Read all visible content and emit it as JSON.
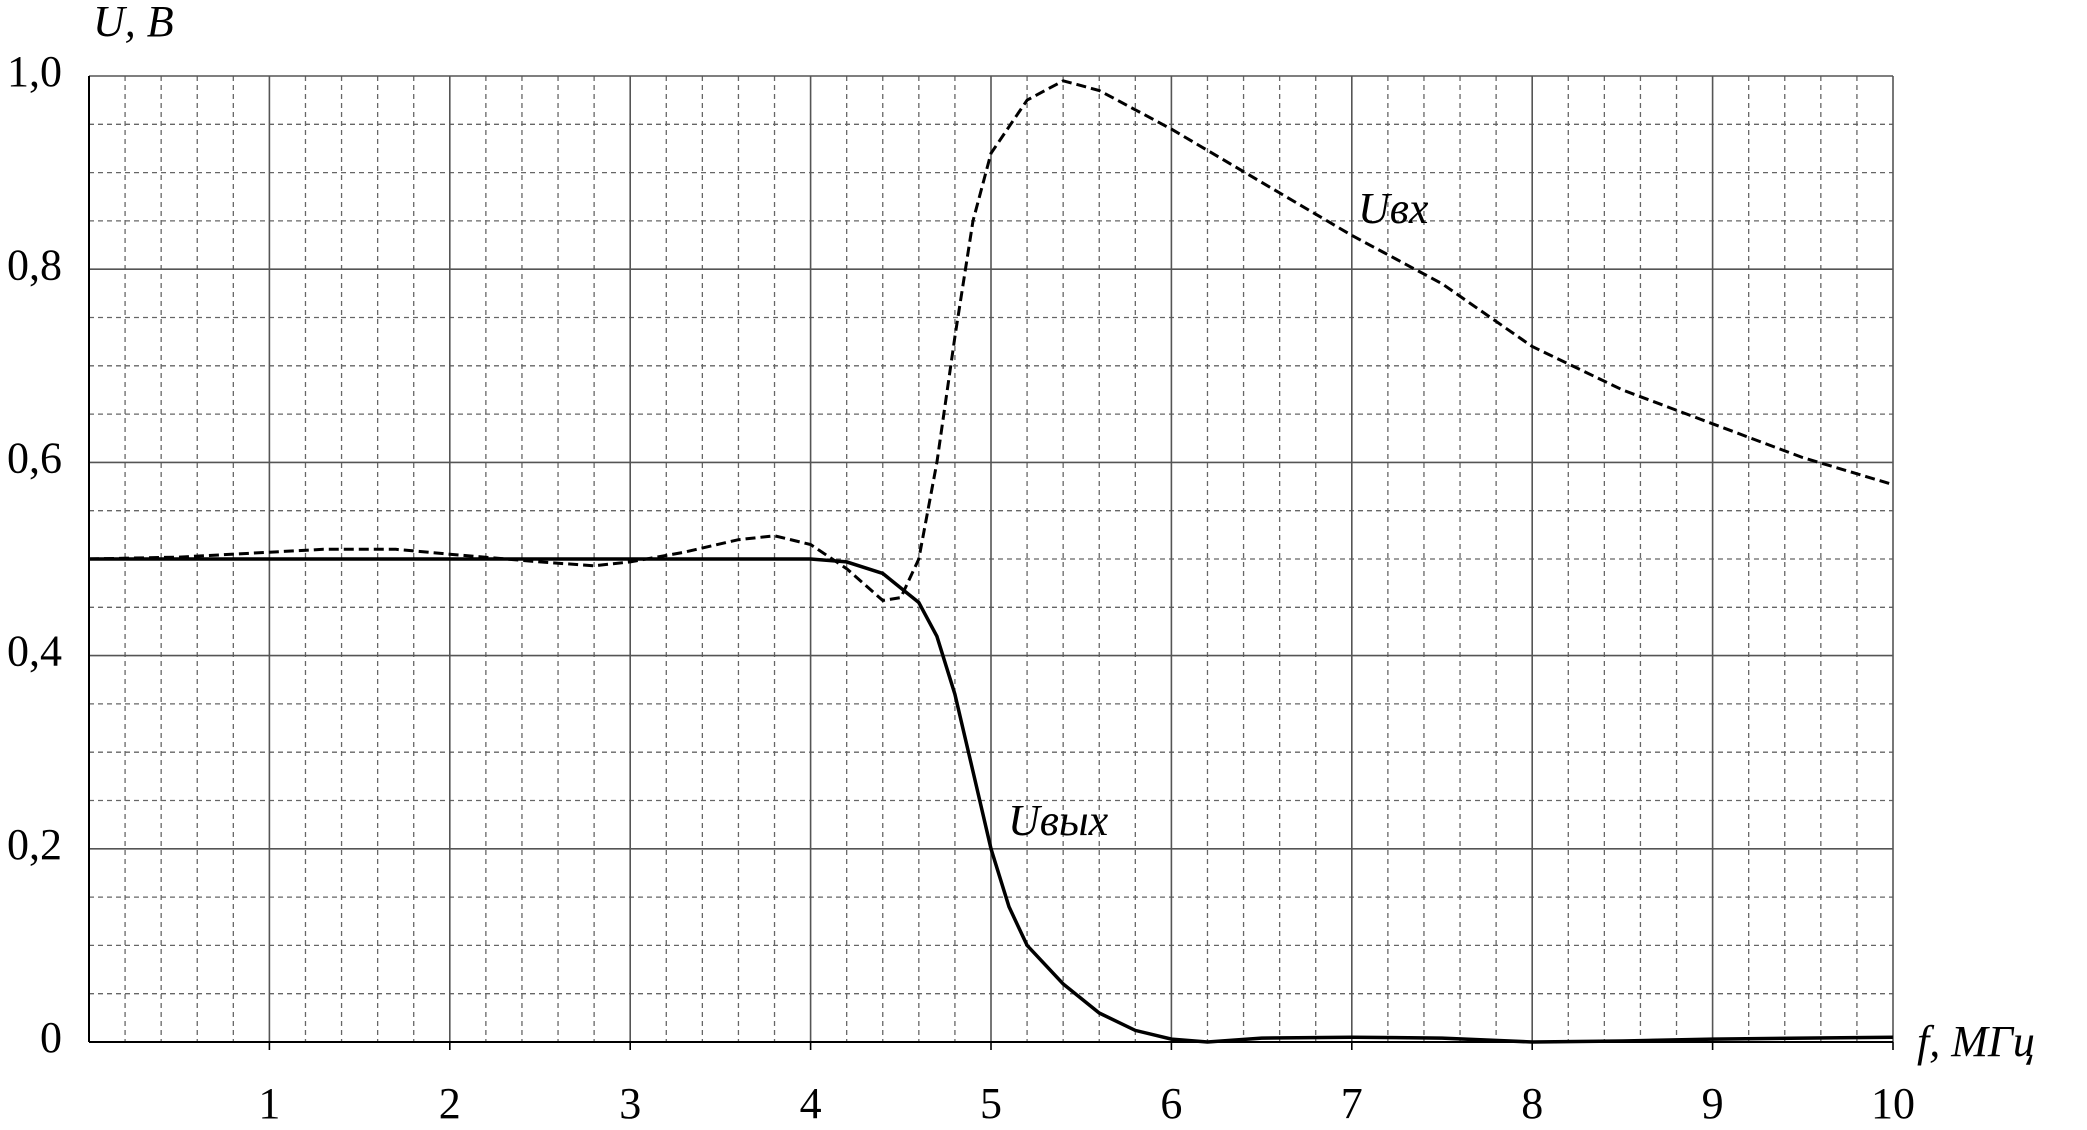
{
  "chart_data": {
    "type": "line",
    "y_label": "U, В",
    "x_label": "f, МГц",
    "xlim": [
      0,
      10
    ],
    "ylim": [
      0,
      1
    ],
    "xticks": [
      1,
      2,
      3,
      4,
      5,
      6,
      7,
      8,
      9,
      10
    ],
    "yticks": [
      0,
      {
        "value": 0.2,
        "label": "0,2"
      },
      {
        "value": 0.4,
        "label": "0,4"
      },
      {
        "value": 0.6,
        "label": "0,6"
      },
      {
        "value": 0.8,
        "label": "0,8"
      },
      {
        "value": 1.0,
        "label": "1,0"
      }
    ],
    "grid": true,
    "series": [
      {
        "name": "Uвх",
        "color": "#000000",
        "line_style": "dashed",
        "x": [
          0,
          0.5,
          1.0,
          1.3,
          1.7,
          2.0,
          2.5,
          2.8,
          3.0,
          3.3,
          3.6,
          3.8,
          4.0,
          4.2,
          4.4,
          4.5,
          4.6,
          4.7,
          4.8,
          4.9,
          5.0,
          5.2,
          5.4,
          5.6,
          5.8,
          6.0,
          6.5,
          7.0,
          7.5,
          8.0,
          8.5,
          9.0,
          9.5,
          10.0
        ],
        "values": [
          0.5,
          0.502,
          0.507,
          0.51,
          0.51,
          0.505,
          0.497,
          0.493,
          0.497,
          0.507,
          0.52,
          0.524,
          0.515,
          0.49,
          0.457,
          0.46,
          0.5,
          0.6,
          0.73,
          0.85,
          0.92,
          0.975,
          0.995,
          0.985,
          0.965,
          0.945,
          0.89,
          0.835,
          0.785,
          0.72,
          0.675,
          0.64,
          0.605,
          0.577
        ]
      },
      {
        "name": "Uвых",
        "color": "#000000",
        "line_style": "solid",
        "x": [
          0,
          1,
          2,
          3,
          4,
          4.2,
          4.4,
          4.6,
          4.7,
          4.8,
          4.9,
          5.0,
          5.1,
          5.2,
          5.4,
          5.6,
          5.8,
          6.0,
          6.2,
          6.5,
          7.0,
          7.5,
          8.0,
          8.5,
          9.0,
          9.5,
          10.0
        ],
        "values": [
          0.5,
          0.5,
          0.5,
          0.5,
          0.5,
          0.497,
          0.485,
          0.455,
          0.42,
          0.36,
          0.28,
          0.2,
          0.14,
          0.1,
          0.06,
          0.03,
          0.012,
          0.003,
          0.0,
          0.004,
          0.005,
          0.004,
          0.0,
          0.001,
          0.003,
          0.004,
          0.005
        ]
      }
    ]
  }
}
